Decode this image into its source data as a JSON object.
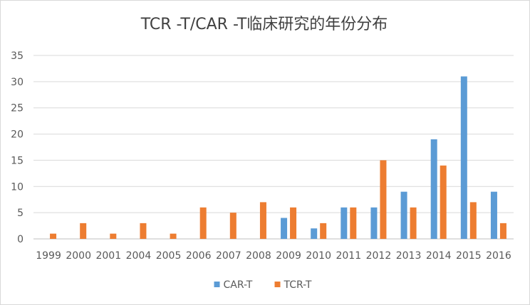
{
  "chart_data": {
    "type": "bar",
    "title": "TCR -T/CAR -T临床研究的年份分布",
    "xlabel": "",
    "ylabel": "",
    "categories": [
      "1999",
      "2000",
      "2001",
      "2004",
      "2005",
      "2006",
      "2007",
      "2008",
      "2009",
      "2010",
      "2011",
      "2012",
      "2013",
      "2014",
      "2015",
      "2016"
    ],
    "series": [
      {
        "name": "CAR-T",
        "color": "#5b9bd5",
        "values": [
          0,
          0,
          0,
          0,
          0,
          0,
          0,
          0,
          4,
          2,
          6,
          6,
          9,
          19,
          31,
          9
        ]
      },
      {
        "name": "TCR-T",
        "color": "#ed7d31",
        "values": [
          1,
          3,
          1,
          3,
          1,
          6,
          5,
          7,
          6,
          3,
          6,
          15,
          6,
          14,
          7,
          3
        ]
      }
    ],
    "ylim": [
      0,
      35
    ],
    "yticks": [
      0,
      5,
      10,
      15,
      20,
      25,
      30,
      35
    ],
    "grid": true,
    "legend": "bottom"
  }
}
